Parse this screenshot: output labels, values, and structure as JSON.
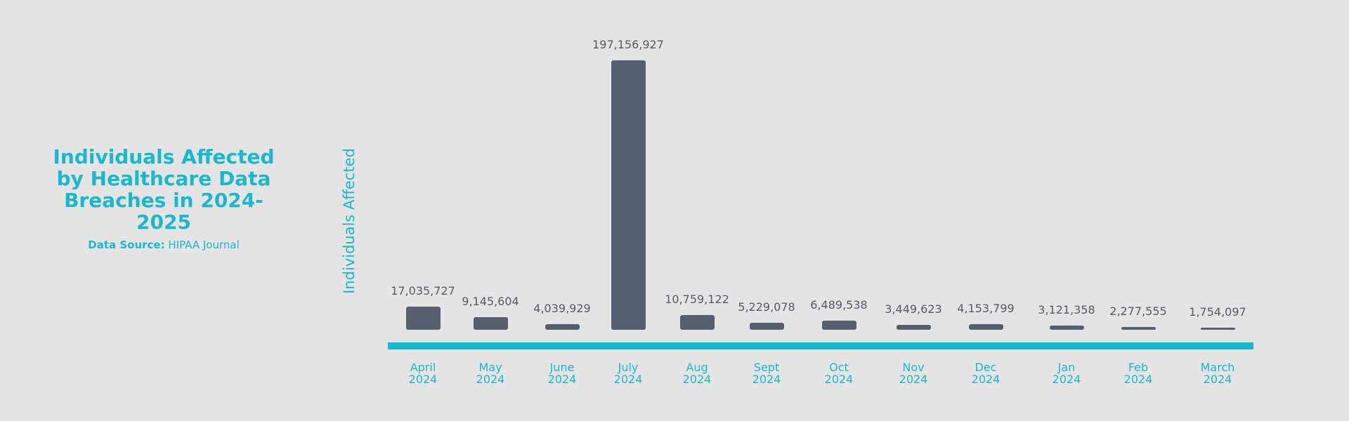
{
  "chart_data": {
    "type": "bar",
    "title": "Individuals Affected by Healthcare Data Breaches in 2024-2025",
    "source_label": "Data Source:",
    "source": "HIPAA Journal",
    "y_label": "Individuals Affected",
    "categories": [
      "April 2024",
      "May 2024",
      "June 2024",
      "July 2024",
      "Aug 2024",
      "Sept 2024",
      "Oct 2024",
      "Nov 2024",
      "Dec 2024",
      "Jan 2024",
      "Feb 2024",
      "March 2024"
    ],
    "values": [
      17035727,
      9145604,
      4039929,
      197156927,
      10759122,
      5229078,
      6489538,
      3449623,
      4153799,
      3121358,
      2277555,
      1754097
    ],
    "value_labels": [
      "17,035,727",
      "9,145,604",
      "4,039,929",
      "197,156,927",
      "10,759,122",
      "5,229,078",
      "6,489,538",
      "3,449,623",
      "4,153,799",
      "3,121,358",
      "2,277,555",
      "1,754,097"
    ],
    "color": "#575e6e",
    "accent_color": "#1ab8d0"
  }
}
